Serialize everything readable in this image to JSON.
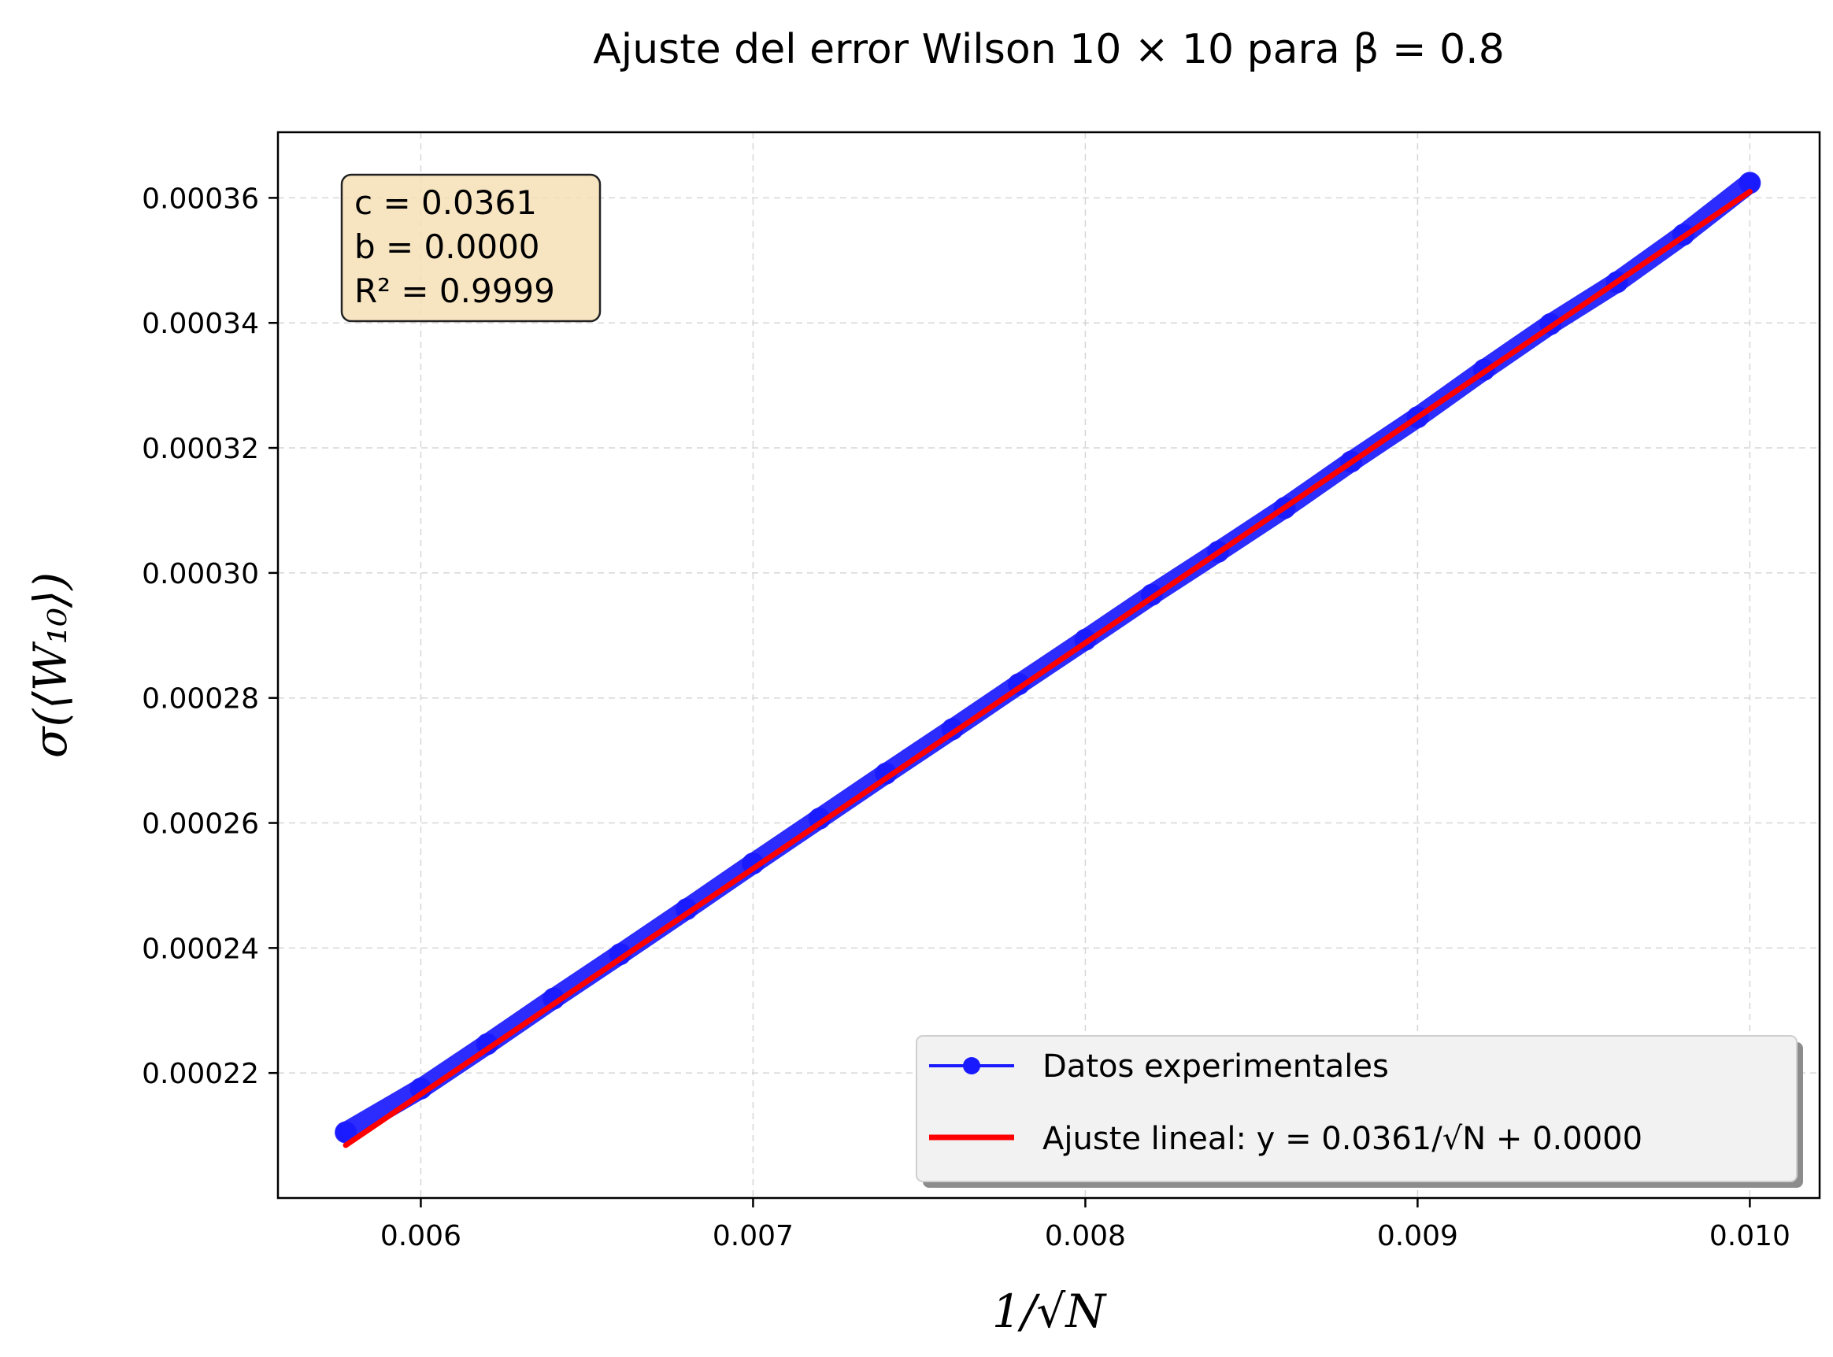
{
  "chart_data": {
    "type": "line",
    "title": "Ajuste del error Wilson 10 × 10 para β = 0.8",
    "xlabel": "1/√N",
    "ylabel": "σ(⟨W₁₀⟩)",
    "xlim": [
      0.00557,
      0.01021
    ],
    "ylim": [
      0.0002,
      0.0003705
    ],
    "x_ticks": [
      0.006,
      0.007,
      0.008,
      0.009,
      0.01
    ],
    "x_tick_labels": [
      "0.006",
      "0.007",
      "0.008",
      "0.009",
      "0.010"
    ],
    "y_ticks": [
      0.00022,
      0.00024,
      0.00026,
      0.00028,
      0.0003,
      0.00032,
      0.00034,
      0.00036
    ],
    "y_tick_labels": [
      "0.00022",
      "0.00024",
      "0.00026",
      "0.00028",
      "0.00030",
      "0.00032",
      "0.00034",
      "0.00036"
    ],
    "grid": true,
    "legend_position": "lower-right",
    "series": [
      {
        "name": "Datos experimentales",
        "kind": "line-markers",
        "color": "#1a1aff",
        "x": [
          0.005774,
          0.006,
          0.0062,
          0.0064,
          0.0066,
          0.0068,
          0.007,
          0.0072,
          0.0074,
          0.0076,
          0.0078,
          0.008,
          0.0082,
          0.0084,
          0.0086,
          0.0088,
          0.009,
          0.0092,
          0.0094,
          0.0096,
          0.0098,
          0.01
        ],
        "y": [
          0.0002105,
          0.0002175,
          0.0002246,
          0.0002319,
          0.000239,
          0.0002462,
          0.0002535,
          0.0002607,
          0.0002679,
          0.000275,
          0.0002822,
          0.0002893,
          0.0002965,
          0.0003034,
          0.0003104,
          0.0003178,
          0.0003249,
          0.0003325,
          0.0003398,
          0.0003465,
          0.0003541,
          0.0003624
        ]
      },
      {
        "name": "Ajuste lineal: y = 0.0361/√N + 0.0000",
        "kind": "line",
        "color": "#ff0000",
        "slope": 0.0361,
        "intercept": 0.0,
        "x_range": [
          0.005774,
          0.01
        ]
      }
    ],
    "stats_box": {
      "lines": [
        "c = 0.0361",
        "b = 0.0000",
        "R² = 0.9999"
      ],
      "background": "#f5deb3"
    }
  }
}
